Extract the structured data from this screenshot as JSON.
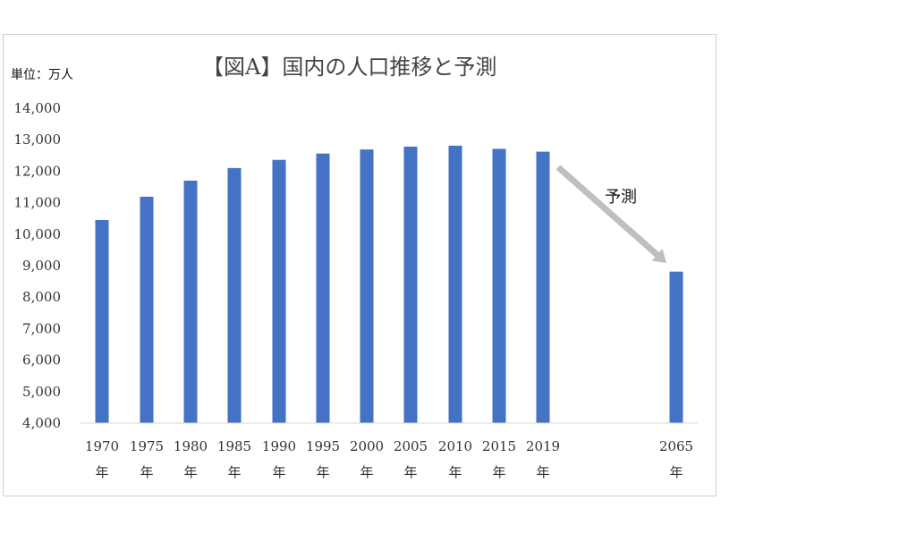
{
  "chart_data": {
    "type": "bar",
    "title": "【図A】国内の人口推移と予測",
    "unit_label": "単位：万人",
    "annotation": "予測",
    "categories": [
      [
        "1970",
        "年"
      ],
      [
        "1975",
        "年"
      ],
      [
        "1980",
        "年"
      ],
      [
        "1985",
        "年"
      ],
      [
        "1990",
        "年"
      ],
      [
        "1995",
        "年"
      ],
      [
        "2000",
        "年"
      ],
      [
        "2005",
        "年"
      ],
      [
        "2010",
        "年"
      ],
      [
        "2015",
        "年"
      ],
      [
        "2019",
        "年"
      ],
      [
        "2065",
        "年"
      ]
    ],
    "values": [
      10450,
      11190,
      11700,
      12100,
      12360,
      12560,
      12690,
      12780,
      12810,
      12710,
      12620,
      8810
    ],
    "yticks": [
      "4,000",
      "5,000",
      "6,000",
      "7,000",
      "8,000",
      "9,000",
      "10,000",
      "11,000",
      "12,000",
      "13,000",
      "14,000"
    ],
    "ylim": [
      4000,
      14000
    ],
    "bar_color": "#4472C4",
    "arrow_color": "#BFBFBF",
    "grid": false
  }
}
